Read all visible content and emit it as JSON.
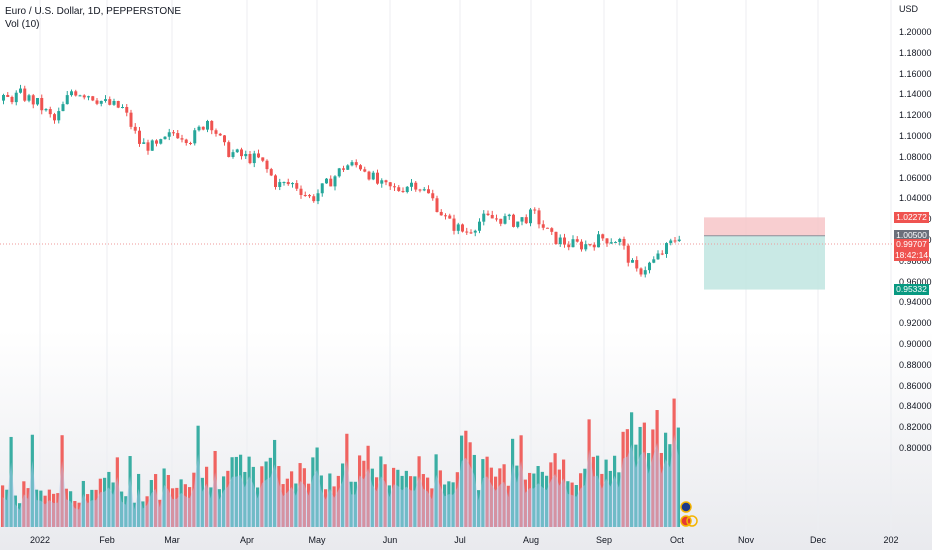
{
  "legend": {
    "symbol": "Euro / U.S. Dollar, 1D, PEPPERSTONE",
    "volume": "Vol (10)"
  },
  "price_axis": {
    "currency": "USD",
    "ticks": [
      "1.20000",
      "1.18000",
      "1.16000",
      "1.14000",
      "1.12000",
      "1.10000",
      "1.08000",
      "1.06000",
      "1.04000",
      "1.02000",
      "1.00000",
      "0.98000",
      "0.96000",
      "0.94000",
      "0.92000",
      "0.90000",
      "0.88000",
      "0.86000",
      "0.84000",
      "0.82000",
      "0.80000"
    ],
    "tags": {
      "stop": "1.02272",
      "entry": "1.00500",
      "last": "0.99707",
      "countdown": "18:42:14",
      "target": "0.95332"
    }
  },
  "time_axis": {
    "ticks": [
      "2022",
      "Feb",
      "Mar",
      "Apr",
      "May",
      "Jun",
      "Jul",
      "Aug",
      "Sep",
      "Oct",
      "Nov",
      "Dec",
      "202"
    ]
  },
  "colors": {
    "up": "#26a69a",
    "down": "#ef5350",
    "vol_ma": "#b3cdf5",
    "stop_zone": "#f7c6c8",
    "target_zone": "#bfe5e0",
    "entry_tag": "#6b6f7a",
    "last_line": "#ef9a9a"
  },
  "chart_data": {
    "type": "candlestick",
    "title": "Euro / U.S. Dollar, 1D, PEPPERSTONE",
    "ylim": [
      0.79,
      1.21
    ],
    "x": [
      "2022-01-03",
      "2022-01-10",
      "2022-01-17",
      "2022-01-24",
      "2022-01-31",
      "2022-02-07",
      "2022-02-14",
      "2022-02-21",
      "2022-02-28",
      "2022-03-07",
      "2022-03-14",
      "2022-03-21",
      "2022-03-28",
      "2022-04-04",
      "2022-04-11",
      "2022-04-18",
      "2022-04-25",
      "2022-05-02",
      "2022-05-09",
      "2022-05-16",
      "2022-05-23",
      "2022-05-30",
      "2022-06-06",
      "2022-06-13",
      "2022-06-20",
      "2022-06-27",
      "2022-07-04",
      "2022-07-11",
      "2022-07-18",
      "2022-07-25",
      "2022-08-01",
      "2022-08-08",
      "2022-08-15",
      "2022-08-22",
      "2022-08-29",
      "2022-09-05",
      "2022-09-12",
      "2022-09-19",
      "2022-09-26",
      "2022-10-03"
    ],
    "close": [
      1.135,
      1.141,
      1.132,
      1.115,
      1.145,
      1.141,
      1.132,
      1.127,
      1.093,
      1.09,
      1.105,
      1.098,
      1.118,
      1.087,
      1.081,
      1.078,
      1.054,
      1.055,
      1.04,
      1.056,
      1.073,
      1.072,
      1.053,
      1.049,
      1.057,
      1.042,
      1.018,
      1.008,
      1.021,
      1.022,
      1.018,
      1.026,
      1.004,
      0.997,
      0.996,
      1.003,
      1.001,
      0.969,
      0.98,
      0.997
    ],
    "volume_range": [
      0.79,
      0.895
    ],
    "series": [
      {
        "name": "Vol (10)",
        "type": "volume-ma"
      }
    ],
    "position": {
      "type": "short",
      "entry": 1.005,
      "stop": 1.02272,
      "target": 0.95332,
      "last_price": 0.99707
    }
  }
}
